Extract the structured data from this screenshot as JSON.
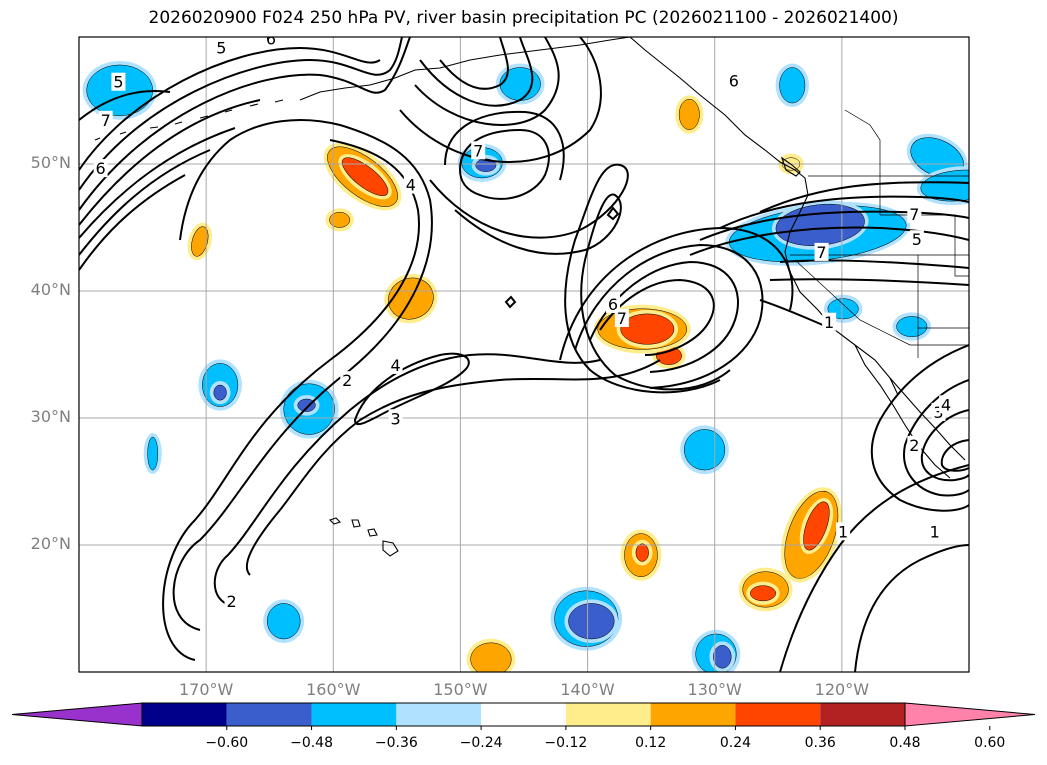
{
  "title": "2026020900 F024 250 hPa PV, river basin precipitation PC (2026021100 - 2026021400)",
  "map": {
    "lon_range": [
      -180,
      -110
    ],
    "lat_range": [
      10,
      60
    ],
    "lat_ticks": [
      {
        "value": 50,
        "label": "50°N"
      },
      {
        "value": 40,
        "label": "40°N"
      },
      {
        "value": 30,
        "label": "30°N"
      },
      {
        "value": 20,
        "label": "20°N"
      }
    ],
    "lon_ticks": [
      {
        "value": -170,
        "label": "170°W"
      },
      {
        "value": -160,
        "label": "160°W"
      },
      {
        "value": -150,
        "label": "150°W"
      },
      {
        "value": -140,
        "label": "140°W"
      },
      {
        "value": -130,
        "label": "130°W"
      },
      {
        "value": -120,
        "label": "120°W"
      }
    ],
    "contour_labels": [
      {
        "text": "5",
        "lon": -168.8,
        "lat": 59.1
      },
      {
        "text": "6",
        "lon": -164.9,
        "lat": 59.8
      },
      {
        "text": "5",
        "lon": -176.9,
        "lat": 56.4
      },
      {
        "text": "7",
        "lon": -177.9,
        "lat": 53.4
      },
      {
        "text": "6",
        "lon": -178.3,
        "lat": 49.6
      },
      {
        "text": "4",
        "lon": -153.9,
        "lat": 48.3
      },
      {
        "text": "7",
        "lon": -148.6,
        "lat": 51.0
      },
      {
        "text": "6",
        "lon": -128.5,
        "lat": 56.5
      },
      {
        "text": "7",
        "lon": -121.6,
        "lat": 43.0
      },
      {
        "text": "5",
        "lon": -114.1,
        "lat": 44.0
      },
      {
        "text": "7",
        "lon": -114.3,
        "lat": 46.0
      },
      {
        "text": "6",
        "lon": -138.0,
        "lat": 38.9
      },
      {
        "text": "7",
        "lon": -137.3,
        "lat": 37.8
      },
      {
        "text": "1",
        "lon": -121.0,
        "lat": 37.5
      },
      {
        "text": "2",
        "lon": -158.9,
        "lat": 32.9
      },
      {
        "text": "4",
        "lon": -155.1,
        "lat": 34.1
      },
      {
        "text": "3",
        "lon": -155.1,
        "lat": 29.9
      },
      {
        "text": "2",
        "lon": -114.3,
        "lat": 27.8
      },
      {
        "text": "3",
        "lon": -112.4,
        "lat": 30.4
      },
      {
        "text": "4",
        "lon": -111.8,
        "lat": 31.0
      },
      {
        "text": "1",
        "lon": -119.9,
        "lat": 21.0
      },
      {
        "text": "1",
        "lon": -112.7,
        "lat": 21.0
      },
      {
        "text": "2",
        "lon": -168.0,
        "lat": 15.5
      }
    ],
    "precip_blobs": [
      {
        "lon": -176.8,
        "lat": 55.8,
        "rx": 2.6,
        "ry": 2.0,
        "rot": 0,
        "category": -0.3
      },
      {
        "lon": -145.3,
        "lat": 56.3,
        "rx": 1.6,
        "ry": 1.3,
        "rot": 0,
        "category": -0.3
      },
      {
        "lon": -148.3,
        "lat": 50.1,
        "rx": 1.6,
        "ry": 1.2,
        "rot": 0,
        "category": -0.3
      },
      {
        "lon": -148.0,
        "lat": 49.9,
        "rx": 0.8,
        "ry": 0.5,
        "rot": 0,
        "category": -0.42
      },
      {
        "lon": -123.9,
        "lat": 56.2,
        "rx": 1.0,
        "ry": 1.4,
        "rot": 0,
        "category": -0.3
      },
      {
        "lon": -112.5,
        "lat": 50.5,
        "rx": 2.2,
        "ry": 1.4,
        "rot": 25,
        "category": -0.3
      },
      {
        "lon": -110.8,
        "lat": 48.3,
        "rx": 3.0,
        "ry": 1.2,
        "rot": -5,
        "category": -0.3
      },
      {
        "lon": -121.9,
        "lat": 44.5,
        "rx": 7.0,
        "ry": 2.1,
        "rot": -6,
        "category": -0.3
      },
      {
        "lon": -121.7,
        "lat": 45.2,
        "rx": 3.5,
        "ry": 1.6,
        "rot": -6,
        "category": -0.42
      },
      {
        "lon": -119.9,
        "lat": 38.6,
        "rx": 1.2,
        "ry": 0.8,
        "rot": 0,
        "category": -0.3
      },
      {
        "lon": -114.5,
        "lat": 37.2,
        "rx": 1.2,
        "ry": 0.8,
        "rot": 0,
        "category": -0.3
      },
      {
        "lon": -168.9,
        "lat": 32.6,
        "rx": 1.4,
        "ry": 1.7,
        "rot": 0,
        "category": -0.3
      },
      {
        "lon": -168.9,
        "lat": 32.0,
        "rx": 0.5,
        "ry": 0.6,
        "rot": 0,
        "category": -0.42
      },
      {
        "lon": -161.9,
        "lat": 30.7,
        "rx": 2.0,
        "ry": 2.0,
        "rot": 0,
        "category": -0.3
      },
      {
        "lon": -162.1,
        "lat": 31.0,
        "rx": 0.7,
        "ry": 0.5,
        "rot": 0,
        "category": -0.42
      },
      {
        "lon": -174.2,
        "lat": 27.2,
        "rx": 0.4,
        "ry": 1.3,
        "rot": 0,
        "category": -0.3
      },
      {
        "lon": -130.8,
        "lat": 27.5,
        "rx": 1.6,
        "ry": 1.6,
        "rot": 0,
        "category": -0.3
      },
      {
        "lon": -163.9,
        "lat": 14.0,
        "rx": 1.3,
        "ry": 1.4,
        "rot": 0,
        "category": -0.3
      },
      {
        "lon": -140.1,
        "lat": 14.2,
        "rx": 2.5,
        "ry": 2.2,
        "rot": 0,
        "category": -0.3
      },
      {
        "lon": -139.7,
        "lat": 14.0,
        "rx": 1.8,
        "ry": 1.4,
        "rot": 0,
        "category": -0.42
      },
      {
        "lon": -129.9,
        "lat": 11.4,
        "rx": 1.6,
        "ry": 1.6,
        "rot": 0,
        "category": -0.3
      },
      {
        "lon": -129.4,
        "lat": 11.2,
        "rx": 0.7,
        "ry": 0.9,
        "rot": 0,
        "category": -0.42
      },
      {
        "lon": -157.7,
        "lat": 49.0,
        "rx": 3.3,
        "ry": 1.5,
        "rot": 38,
        "category": 0.3
      },
      {
        "lon": -157.5,
        "lat": 49.0,
        "rx": 2.2,
        "ry": 0.8,
        "rot": 38,
        "category": 0.42
      },
      {
        "lon": -159.5,
        "lat": 45.6,
        "rx": 0.8,
        "ry": 0.6,
        "rot": 0,
        "category": 0.3
      },
      {
        "lon": -170.5,
        "lat": 43.9,
        "rx": 0.6,
        "ry": 1.2,
        "rot": 15,
        "category": 0.3
      },
      {
        "lon": -153.9,
        "lat": 39.4,
        "rx": 1.8,
        "ry": 1.6,
        "rot": -20,
        "category": 0.3
      },
      {
        "lon": -133.6,
        "lat": 34.9,
        "rx": 1.0,
        "ry": 0.7,
        "rot": 0,
        "category": 0.42
      },
      {
        "lon": -135.7,
        "lat": 37.0,
        "rx": 3.5,
        "ry": 1.6,
        "rot": 0,
        "category": 0.3
      },
      {
        "lon": -135.3,
        "lat": 37.0,
        "rx": 2.1,
        "ry": 1.2,
        "rot": 0,
        "category": 0.42
      },
      {
        "lon": -132.0,
        "lat": 53.9,
        "rx": 0.8,
        "ry": 1.2,
        "rot": 0,
        "category": 0.3
      },
      {
        "lon": -124.0,
        "lat": 50.0,
        "rx": 0.7,
        "ry": 0.5,
        "rot": 0,
        "category": 0.18
      },
      {
        "lon": -122.4,
        "lat": 20.8,
        "rx": 1.8,
        "ry": 3.6,
        "rot": 20,
        "category": 0.3
      },
      {
        "lon": -122.0,
        "lat": 21.5,
        "rx": 0.8,
        "ry": 2.0,
        "rot": 20,
        "category": 0.42
      },
      {
        "lon": -126.0,
        "lat": 16.5,
        "rx": 1.8,
        "ry": 1.4,
        "rot": 0,
        "category": 0.3
      },
      {
        "lon": -126.2,
        "lat": 16.2,
        "rx": 1.0,
        "ry": 0.6,
        "rot": 0,
        "category": 0.42
      },
      {
        "lon": -135.8,
        "lat": 19.2,
        "rx": 1.3,
        "ry": 1.7,
        "rot": 0,
        "category": 0.3
      },
      {
        "lon": -135.7,
        "lat": 19.4,
        "rx": 0.5,
        "ry": 0.7,
        "rot": 0,
        "category": 0.42
      },
      {
        "lon": -147.6,
        "lat": 11.0,
        "rx": 1.6,
        "ry": 1.3,
        "rot": 0,
        "category": 0.3
      }
    ]
  },
  "colorbar": {
    "colors": [
      "#9932CC",
      "#00008B",
      "#3A5FCD",
      "#00BFFF",
      "#B0E2FF",
      "#FFFFFF",
      "#FFEC8B",
      "#FFA500",
      "#FF4500",
      "#B22222",
      "#FF82AB"
    ],
    "tick_labels": [
      "−0.60",
      "−0.48",
      "−0.36",
      "−0.24",
      "−0.12",
      "0.12",
      "0.24",
      "0.36",
      "0.48",
      "0.60"
    ]
  }
}
